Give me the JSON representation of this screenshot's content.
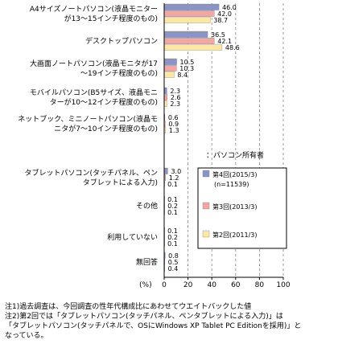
{
  "chart_data": {
    "type": "bar",
    "orientation": "horizontal",
    "categories": [
      [
        "A4サイズノートパソコン(液晶モニター",
        "が13～15インチ程度のもの)"
      ],
      [
        "デスクトップパソコン"
      ],
      [
        "大画面ノートパソコン(液晶モニタが17",
        "～19インチ程度のもの)"
      ],
      [
        "モバイルパソコン(B5サイズ、液晶モニ",
        "ターが10～12インチ程度のもの)"
      ],
      [
        "ネットブック、ミニノートパソコン(液晶モ",
        "ニタが7～10インチ程度のもの)"
      ],
      [
        "タブレットパソコン(タッチパネル、ペン",
        "タブレットによる入力)"
      ],
      [
        "その他"
      ],
      [
        "利用していない"
      ],
      [
        "無回答"
      ]
    ],
    "series": [
      {
        "name": "第4回(2015/3)",
        "sub": "(n=11539)",
        "color": "#8b94c8",
        "values": [
          46.0,
          36.5,
          10.5,
          2.3,
          0.6,
          3.0,
          0.1,
          0.1,
          0.8
        ]
      },
      {
        "name": "第3回(2013/3)",
        "color": "#f2a8a0",
        "values": [
          42.0,
          42.1,
          10.3,
          2.6,
          0.9,
          1.2,
          0.2,
          0.2,
          0.5
        ]
      },
      {
        "name": "第2回(2011/3)",
        "color": "#fde7a4",
        "values": [
          38.7,
          48.6,
          8.4,
          2.3,
          1.3,
          0.1,
          0.1,
          0.1,
          0.4
        ]
      }
    ],
    "value_labels": [
      [
        "46.0",
        "36.5",
        "10.5",
        "2.3",
        "0.6",
        "3.0",
        "0.1",
        "0.1",
        "0.8"
      ],
      [
        "42.0",
        "42.1",
        "10.3",
        "2.6",
        "0.9",
        "1.2",
        "0.2",
        "0.2",
        "0.5"
      ],
      [
        "38.7",
        "48.6",
        "8.4",
        "2.3",
        "1.3",
        "0.1",
        "0.1",
        "0.1",
        "0.4"
      ]
    ],
    "xlim": [
      0,
      100
    ],
    "ticks": [
      "0",
      "20",
      "40",
      "60",
      "80",
      "100"
    ],
    "tick_values": [
      0,
      20,
      40,
      60,
      80,
      100
    ],
    "xlabel": "(%)",
    "annotation": "：パソコン所有者",
    "legend_position": "right",
    "grid": "vertical dashed"
  },
  "notes": [
    "注1)過去調査は、今回調査の性年代構成比にあわせてウエイトバックした値",
    "注2)第2回では「タブレットパソコン(タッチパネル、ペンタブレットによる入力)」は",
    "「タブレットパソコン(タッチパネルで、OSにWindows XP Tablet PC Editionを採用)」と",
    "なっている。"
  ]
}
